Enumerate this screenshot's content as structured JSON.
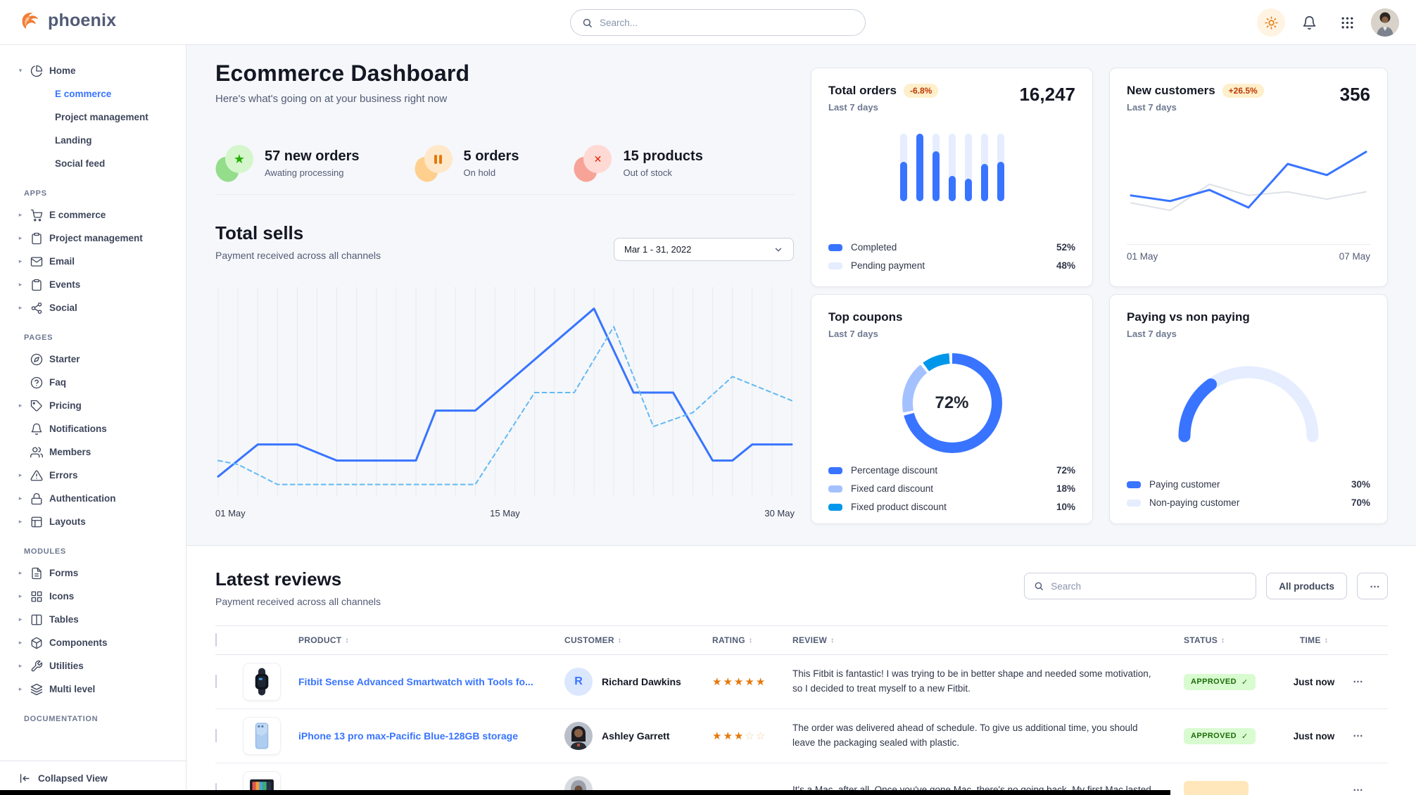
{
  "navbar": {
    "brand": "phoenix",
    "search_placeholder": "Search..."
  },
  "sidebar": {
    "home_group": {
      "label": "Home",
      "icon": "pie",
      "children": [
        {
          "label": "E commerce",
          "active": true
        },
        {
          "label": "Project management",
          "active": false
        },
        {
          "label": "Landing",
          "active": false
        },
        {
          "label": "Social feed",
          "active": false
        }
      ]
    },
    "sections": [
      {
        "label": "APPS",
        "items": [
          {
            "label": "E commerce",
            "icon": "cart",
            "caret": true
          },
          {
            "label": "Project management",
            "icon": "clipboard",
            "caret": true
          },
          {
            "label": "Email",
            "icon": "mail",
            "caret": true
          },
          {
            "label": "Events",
            "icon": "clipboard",
            "caret": true
          },
          {
            "label": "Social",
            "icon": "share",
            "caret": true
          }
        ]
      },
      {
        "label": "PAGES",
        "items": [
          {
            "label": "Starter",
            "icon": "compass",
            "caret": false
          },
          {
            "label": "Faq",
            "icon": "help",
            "caret": false
          },
          {
            "label": "Pricing",
            "icon": "tag",
            "caret": true
          },
          {
            "label": "Notifications",
            "icon": "bell",
            "caret": false
          },
          {
            "label": "Members",
            "icon": "users",
            "caret": false
          },
          {
            "label": "Errors",
            "icon": "warning",
            "caret": true
          },
          {
            "label": "Authentication",
            "icon": "lock",
            "caret": true
          },
          {
            "label": "Layouts",
            "icon": "layout",
            "caret": true
          }
        ]
      },
      {
        "label": "MODULES",
        "items": [
          {
            "label": "Forms",
            "icon": "file",
            "caret": true
          },
          {
            "label": "Icons",
            "icon": "grid",
            "caret": true
          },
          {
            "label": "Tables",
            "icon": "columns",
            "caret": true
          },
          {
            "label": "Components",
            "icon": "box",
            "caret": true
          },
          {
            "label": "Utilities",
            "icon": "wrench",
            "caret": true
          },
          {
            "label": "Multi level",
            "icon": "layers",
            "caret": true
          }
        ]
      },
      {
        "label": "DOCUMENTATION",
        "items": []
      }
    ],
    "footer_label": "Collapsed View"
  },
  "header": {
    "title": "Ecommerce Dashboard",
    "subtitle": "Here's what's going on at your business right now"
  },
  "stats": [
    {
      "value_label": "57 new orders",
      "caption": "Awating processing",
      "tone": "success"
    },
    {
      "value_label": "5 orders",
      "caption": "On hold",
      "tone": "warning"
    },
    {
      "value_label": "15 products",
      "caption": "Out of stock",
      "tone": "danger"
    }
  ],
  "total_sells": {
    "title": "Total sells",
    "subtitle": "Payment received across all channels",
    "range_label": "Mar 1 - 31, 2022",
    "x_ticks": [
      "01 May",
      "15 May",
      "30 May"
    ],
    "chart": {
      "type": "line",
      "x_range": [
        1,
        30
      ],
      "y_range": [
        0,
        100
      ],
      "series": [
        {
          "name": "solid",
          "style": "solid",
          "color": "#3874ff",
          "points": [
            [
              1,
              8
            ],
            [
              3,
              24
            ],
            [
              5,
              24
            ],
            [
              7,
              16
            ],
            [
              11,
              16
            ],
            [
              12,
              41
            ],
            [
              14,
              41
            ],
            [
              20,
              92
            ],
            [
              22,
              50
            ],
            [
              24,
              50
            ],
            [
              26,
              16
            ],
            [
              27,
              16
            ],
            [
              28,
              24
            ],
            [
              30,
              24
            ]
          ]
        },
        {
          "name": "dashed",
          "style": "dashed",
          "color": "#64b9f4",
          "points": [
            [
              1,
              16
            ],
            [
              2,
              14
            ],
            [
              4,
              4
            ],
            [
              14,
              4
            ],
            [
              17,
              50
            ],
            [
              19,
              50
            ],
            [
              21,
              83
            ],
            [
              23,
              33
            ],
            [
              25,
              40
            ],
            [
              27,
              58
            ],
            [
              30,
              46
            ]
          ]
        }
      ]
    }
  },
  "kpi": {
    "total_orders": {
      "title": "Total orders",
      "badge": "-6.8%",
      "period": "Last 7 days",
      "value": "16,247",
      "chart": {
        "type": "bar",
        "values": [
          58,
          100,
          74,
          38,
          33,
          55,
          58
        ],
        "max": 100,
        "bar_color": "#3874ff",
        "track_color": "#e5edff"
      },
      "legend": [
        {
          "label": "Completed",
          "value": "52%",
          "color": "#3874ff"
        },
        {
          "label": "Pending payment",
          "value": "48%",
          "color": "#e5edff"
        }
      ]
    },
    "new_customers": {
      "title": "New customers",
      "badge": "+26.5%",
      "period": "Last 7 days",
      "value": "356",
      "x_ticks": [
        "01 May",
        "07 May"
      ],
      "chart": {
        "type": "line",
        "series": [
          {
            "name": "current",
            "color": "#3874ff",
            "width": 3,
            "values": [
              38,
              32,
              44,
              25,
              72,
              60,
              85
            ]
          },
          {
            "name": "previous",
            "color": "#dde1e8",
            "width": 2,
            "values": [
              30,
              22,
              50,
              38,
              42,
              34,
              42
            ]
          }
        ]
      }
    },
    "top_coupons": {
      "title": "Top coupons",
      "period": "Last 7 days",
      "center_label": "72%",
      "chart": {
        "type": "pie",
        "segments": [
          {
            "label": "Percentage discount",
            "value": 72,
            "display": "72%",
            "color": "#3874ff"
          },
          {
            "label": "Fixed card discount",
            "value": 18,
            "display": "18%",
            "color": "#a4c1ff"
          },
          {
            "label": "Fixed product discount",
            "value": 10,
            "display": "10%",
            "color": "#0097eb"
          }
        ]
      }
    },
    "paying": {
      "title": "Paying vs non paying",
      "period": "Last 7 days",
      "chart": {
        "type": "gauge",
        "segments": [
          {
            "label": "Paying customer",
            "value": 30,
            "display": "30%",
            "color": "#3874ff"
          },
          {
            "label": "Non-paying customer",
            "value": 70,
            "display": "70%",
            "color": "#e5edff"
          }
        ]
      }
    }
  },
  "reviews": {
    "title": "Latest reviews",
    "subtitle": "Payment received across all channels",
    "search_placeholder": "Search",
    "filter_label": "All products",
    "columns": [
      "PRODUCT",
      "CUSTOMER",
      "RATING",
      "REVIEW",
      "STATUS",
      "TIME"
    ],
    "rows": [
      {
        "product": "Fitbit Sense Advanced Smartwatch with Tools fo...",
        "thumb": "watch",
        "customer": "Richard Dawkins",
        "avatar": {
          "type": "initial",
          "text": "R"
        },
        "rating": 5,
        "rating_max": 5,
        "review": "This Fitbit is fantastic! I was trying to be in better shape and needed some motivation, so I decided to treat myself to a new Fitbit.",
        "status": {
          "label": "APPROVED",
          "tone": "success"
        },
        "time": "Just now"
      },
      {
        "product": "iPhone 13 pro max-Pacific Blue-128GB storage",
        "thumb": "phone",
        "customer": "Ashley Garrett",
        "avatar": {
          "type": "photo-woman"
        },
        "rating": 3,
        "rating_max": 5,
        "review": "The order was delivered ahead of schedule. To give us additional time, you should leave the packaging sealed with plastic.",
        "status": {
          "label": "APPROVED",
          "tone": "success"
        },
        "time": "Just now"
      },
      {
        "product": "",
        "thumb": "imac",
        "customer": "",
        "avatar": {
          "type": "photo-hood"
        },
        "rating": 0,
        "rating_max": 5,
        "review": "It's a Mac, after all. Once you've gone Mac, there's no going back. My first Mac lasted...",
        "status": {
          "label": "",
          "tone": "pending"
        },
        "time": ""
      }
    ]
  }
}
